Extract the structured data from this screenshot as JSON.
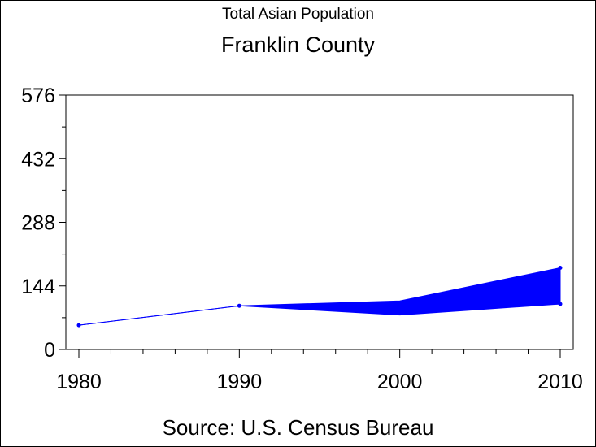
{
  "header": {
    "subtitle": "Total Asian Population",
    "title": "Franklin County"
  },
  "footer": {
    "source": "Source: U.S. Census Bureau"
  },
  "colors": {
    "series": "#0000ff",
    "axis": "#000000",
    "background": "#ffffff"
  },
  "chart_data": {
    "type": "line",
    "title": "Franklin County",
    "subtitle": "Total Asian Population",
    "x": [
      1980,
      1990,
      2000,
      2010
    ],
    "x_tick_labels": [
      "1980",
      "1990",
      "2000",
      "2010"
    ],
    "y_tick_labels": [
      "0",
      "144",
      "288",
      "432",
      "576"
    ],
    "y_ticks": [
      0,
      144,
      288,
      432,
      576
    ],
    "xlim": [
      1980,
      2010
    ],
    "ylim": [
      0,
      576
    ],
    "grid": false,
    "legend": "none",
    "series": [
      {
        "values": [
          55,
          99,
          87,
          103
        ],
        "upper": [
          55,
          99,
          110,
          185
        ],
        "lower": [
          55,
          99,
          78,
          103
        ]
      }
    ]
  }
}
